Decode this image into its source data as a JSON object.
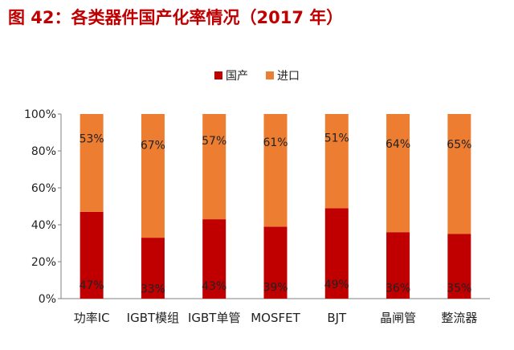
{
  "title": "图 42：各类器件国产化率情况（2017 年）",
  "chart_data": {
    "type": "bar",
    "stacked": true,
    "percent_scale": true,
    "title": "图 42：各类器件国产化率情况（2017 年）",
    "categories": [
      "功率IC",
      "IGBT模组",
      "IGBT单管",
      "MOSFET",
      "BJT",
      "晶闸管",
      "整流器"
    ],
    "series": [
      {
        "name": "国产",
        "color": "#c00000",
        "values": [
          47,
          33,
          43,
          39,
          49,
          36,
          35
        ],
        "labels": [
          "47%",
          "33%",
          "43%",
          "39%",
          "49%",
          "36%",
          "35%"
        ]
      },
      {
        "name": "进口",
        "color": "#ed7d31",
        "values": [
          53,
          67,
          57,
          61,
          51,
          64,
          65
        ],
        "labels": [
          "53%",
          "67%",
          "57%",
          "61%",
          "51%",
          "64%",
          "65%"
        ]
      }
    ],
    "ylim": [
      0,
      100
    ],
    "yticks": [
      "0%",
      "20%",
      "40%",
      "60%",
      "80%",
      "100%"
    ],
    "legend_position": "top-center",
    "grid": false,
    "xlabel": "",
    "ylabel": ""
  }
}
